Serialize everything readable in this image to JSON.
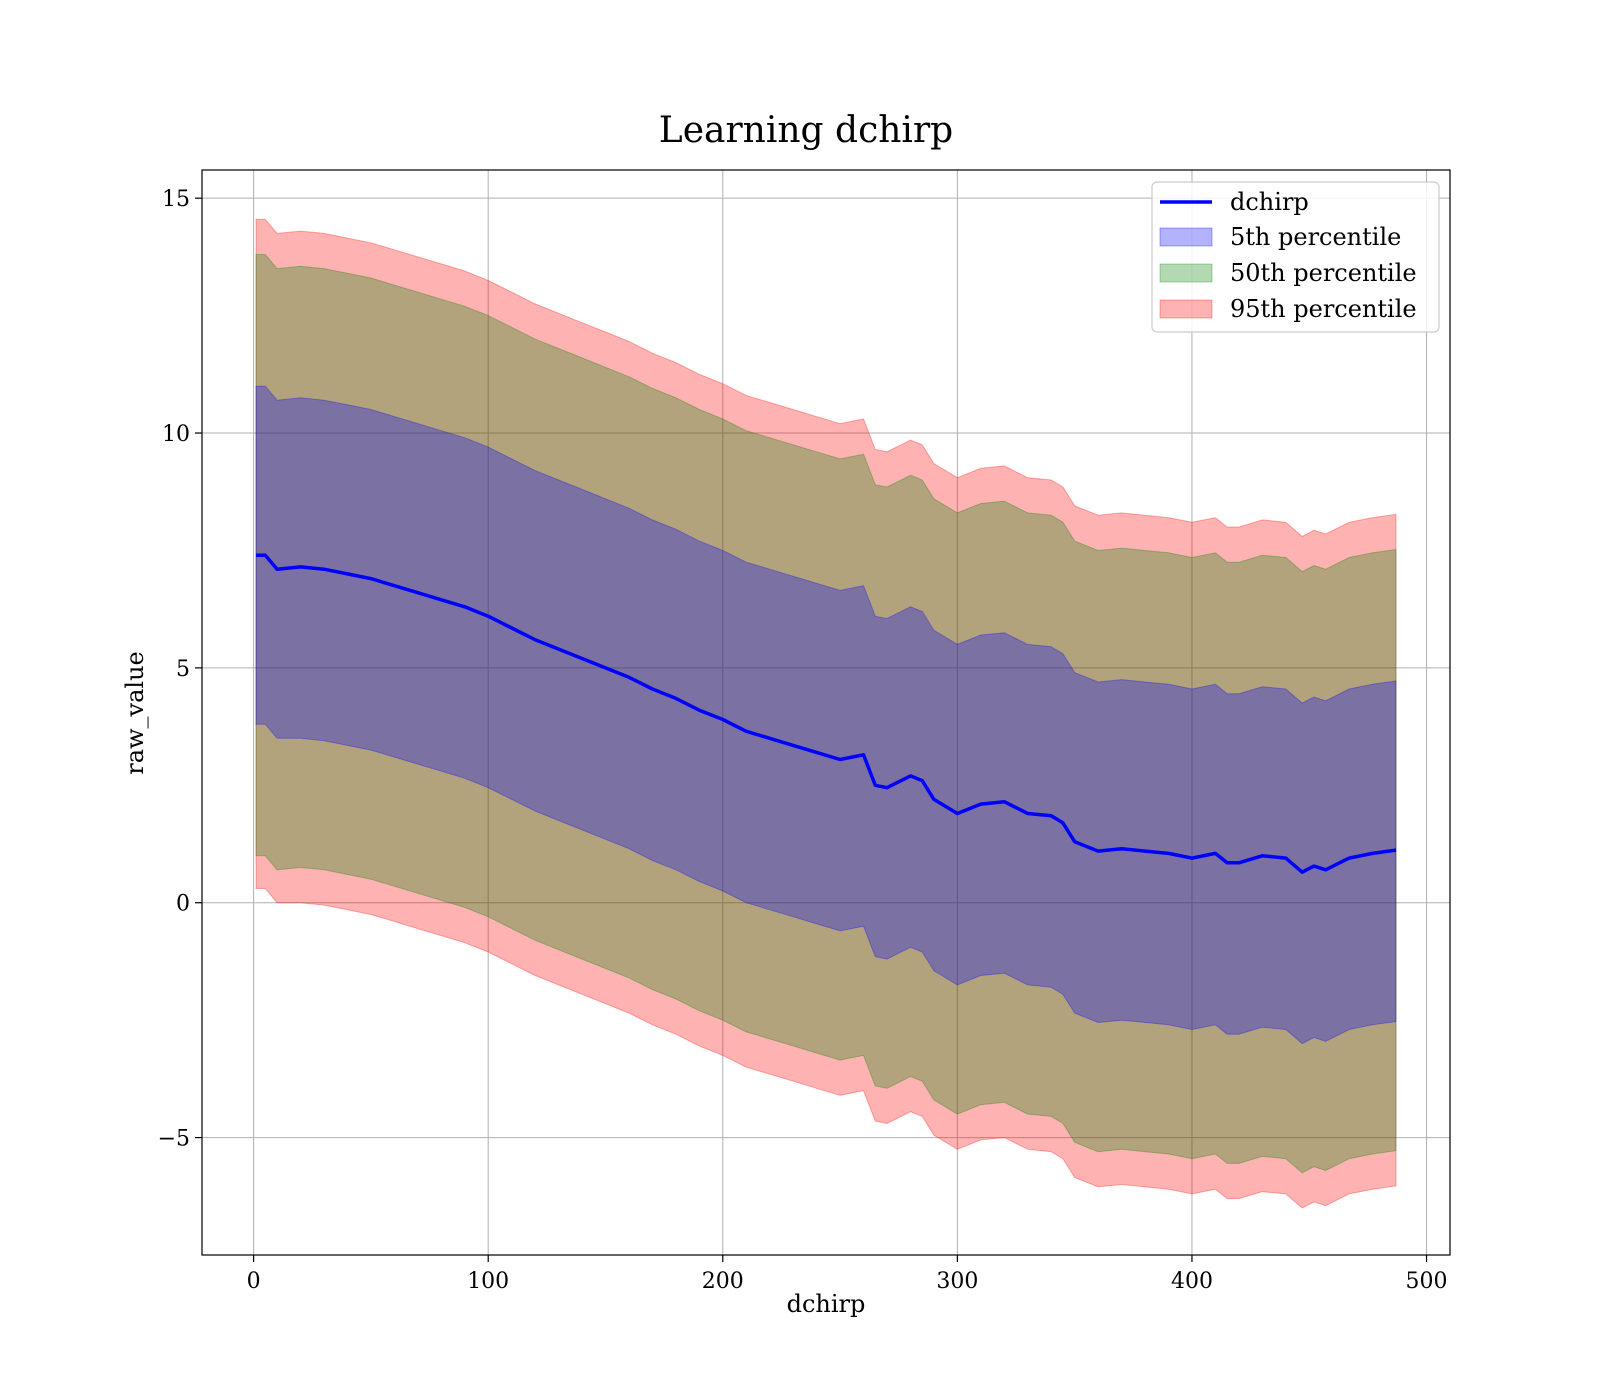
{
  "chart_data": {
    "type": "area",
    "title": "Learning dchirp",
    "xlabel": "dchirp",
    "ylabel": "raw_value",
    "xlim": [
      -22,
      510
    ],
    "ylim": [
      -7.5,
      15.6
    ],
    "xticks": [
      0,
      100,
      200,
      300,
      400,
      500
    ],
    "xtick_labels": [
      "0",
      "100",
      "200",
      "300",
      "400",
      "500"
    ],
    "yticks": [
      -5,
      0,
      5,
      10,
      15
    ],
    "ytick_labels": [
      "−5",
      "0",
      "5",
      "10",
      "15"
    ],
    "grid": true,
    "legend_position": "top-right",
    "series": [
      {
        "name": "dchirp",
        "kind": "line",
        "color": "#0000ff",
        "x": [
          1,
          5,
          10,
          20,
          30,
          40,
          50,
          60,
          70,
          80,
          90,
          100,
          110,
          120,
          130,
          140,
          150,
          160,
          170,
          180,
          190,
          200,
          210,
          220,
          230,
          240,
          250,
          260,
          265,
          270,
          280,
          285,
          290,
          300,
          310,
          320,
          330,
          340,
          345,
          350,
          360,
          370,
          380,
          390,
          400,
          410,
          415,
          420,
          430,
          440,
          447,
          452,
          457,
          467,
          477,
          487
        ],
        "y": [
          7.4,
          7.4,
          7.1,
          7.15,
          7.1,
          7.0,
          6.9,
          6.75,
          6.6,
          6.45,
          6.3,
          6.1,
          5.85,
          5.6,
          5.4,
          5.2,
          5.0,
          4.8,
          4.55,
          4.35,
          4.1,
          3.9,
          3.65,
          3.5,
          3.35,
          3.2,
          3.05,
          3.15,
          2.5,
          2.45,
          2.7,
          2.6,
          2.2,
          1.9,
          2.1,
          2.15,
          1.9,
          1.85,
          1.7,
          1.3,
          1.1,
          1.15,
          1.1,
          1.05,
          0.95,
          1.05,
          0.85,
          0.85,
          1.0,
          0.95,
          0.65,
          0.78,
          0.7,
          0.95,
          1.05,
          1.12
        ]
      },
      {
        "name": "5th percentile",
        "kind": "band",
        "color": "#0000ff",
        "opacity": 0.3,
        "x": [
          1,
          5,
          10,
          20,
          30,
          40,
          50,
          60,
          70,
          80,
          90,
          100,
          110,
          120,
          130,
          140,
          150,
          160,
          170,
          180,
          190,
          200,
          210,
          220,
          230,
          240,
          250,
          260,
          265,
          270,
          280,
          285,
          290,
          300,
          310,
          320,
          330,
          340,
          345,
          350,
          360,
          370,
          380,
          390,
          400,
          410,
          415,
          420,
          430,
          440,
          447,
          452,
          457,
          467,
          477,
          487
        ],
        "lower": [
          3.8,
          3.8,
          3.5,
          3.5,
          3.45,
          3.35,
          3.25,
          3.1,
          2.95,
          2.8,
          2.65,
          2.45,
          2.2,
          1.95,
          1.75,
          1.55,
          1.35,
          1.15,
          0.9,
          0.7,
          0.45,
          0.25,
          0.0,
          -0.15,
          -0.3,
          -0.45,
          -0.6,
          -0.5,
          -1.15,
          -1.2,
          -0.95,
          -1.05,
          -1.45,
          -1.75,
          -1.55,
          -1.5,
          -1.75,
          -1.8,
          -1.95,
          -2.35,
          -2.55,
          -2.5,
          -2.55,
          -2.6,
          -2.7,
          -2.6,
          -2.8,
          -2.8,
          -2.65,
          -2.7,
          -3.0,
          -2.87,
          -2.95,
          -2.7,
          -2.6,
          -2.53
        ],
        "upper": [
          11.0,
          11.0,
          10.7,
          10.75,
          10.7,
          10.6,
          10.5,
          10.35,
          10.2,
          10.05,
          9.9,
          9.7,
          9.45,
          9.2,
          9.0,
          8.8,
          8.6,
          8.4,
          8.15,
          7.95,
          7.7,
          7.5,
          7.25,
          7.1,
          6.95,
          6.8,
          6.65,
          6.75,
          6.1,
          6.05,
          6.3,
          6.2,
          5.8,
          5.5,
          5.7,
          5.75,
          5.5,
          5.45,
          5.3,
          4.9,
          4.7,
          4.75,
          4.7,
          4.65,
          4.55,
          4.65,
          4.45,
          4.45,
          4.6,
          4.55,
          4.25,
          4.38,
          4.3,
          4.55,
          4.65,
          4.72
        ]
      },
      {
        "name": "50th percentile",
        "kind": "band",
        "color": "#008000",
        "opacity": 0.3,
        "x": [
          1,
          5,
          10,
          20,
          30,
          40,
          50,
          60,
          70,
          80,
          90,
          100,
          110,
          120,
          130,
          140,
          150,
          160,
          170,
          180,
          190,
          200,
          210,
          220,
          230,
          240,
          250,
          260,
          265,
          270,
          280,
          285,
          290,
          300,
          310,
          320,
          330,
          340,
          345,
          350,
          360,
          370,
          380,
          390,
          400,
          410,
          415,
          420,
          430,
          440,
          447,
          452,
          457,
          467,
          477,
          487
        ],
        "lower": [
          1.0,
          1.0,
          0.7,
          0.75,
          0.7,
          0.6,
          0.5,
          0.35,
          0.2,
          0.05,
          -0.1,
          -0.3,
          -0.55,
          -0.8,
          -1.0,
          -1.2,
          -1.4,
          -1.6,
          -1.85,
          -2.05,
          -2.3,
          -2.5,
          -2.75,
          -2.9,
          -3.05,
          -3.2,
          -3.35,
          -3.25,
          -3.9,
          -3.95,
          -3.7,
          -3.8,
          -4.2,
          -4.5,
          -4.3,
          -4.25,
          -4.5,
          -4.55,
          -4.7,
          -5.1,
          -5.3,
          -5.25,
          -5.3,
          -5.35,
          -5.45,
          -5.35,
          -5.55,
          -5.55,
          -5.4,
          -5.45,
          -5.75,
          -5.62,
          -5.7,
          -5.45,
          -5.35,
          -5.28
        ],
        "upper": [
          13.8,
          13.8,
          13.5,
          13.55,
          13.5,
          13.4,
          13.3,
          13.15,
          13.0,
          12.85,
          12.7,
          12.5,
          12.25,
          12.0,
          11.8,
          11.6,
          11.4,
          11.2,
          10.95,
          10.75,
          10.5,
          10.3,
          10.05,
          9.9,
          9.75,
          9.6,
          9.45,
          9.55,
          8.9,
          8.85,
          9.1,
          9.0,
          8.6,
          8.3,
          8.5,
          8.55,
          8.3,
          8.25,
          8.1,
          7.7,
          7.5,
          7.55,
          7.5,
          7.45,
          7.35,
          7.45,
          7.25,
          7.25,
          7.4,
          7.35,
          7.05,
          7.18,
          7.1,
          7.35,
          7.45,
          7.52
        ]
      },
      {
        "name": "95th percentile",
        "kind": "band",
        "color": "#ff0000",
        "opacity": 0.3,
        "x": [
          1,
          5,
          10,
          20,
          30,
          40,
          50,
          60,
          70,
          80,
          90,
          100,
          110,
          120,
          130,
          140,
          150,
          160,
          170,
          180,
          190,
          200,
          210,
          220,
          230,
          240,
          250,
          260,
          265,
          270,
          280,
          285,
          290,
          300,
          310,
          320,
          330,
          340,
          345,
          350,
          360,
          370,
          380,
          390,
          400,
          410,
          415,
          420,
          430,
          440,
          447,
          452,
          457,
          467,
          477,
          487
        ],
        "lower": [
          0.3,
          0.3,
          0.0,
          0.0,
          -0.05,
          -0.15,
          -0.25,
          -0.4,
          -0.55,
          -0.7,
          -0.85,
          -1.05,
          -1.3,
          -1.55,
          -1.75,
          -1.95,
          -2.15,
          -2.35,
          -2.6,
          -2.8,
          -3.05,
          -3.25,
          -3.5,
          -3.65,
          -3.8,
          -3.95,
          -4.1,
          -4.0,
          -4.65,
          -4.7,
          -4.45,
          -4.55,
          -4.95,
          -5.25,
          -5.05,
          -5.0,
          -5.25,
          -5.3,
          -5.45,
          -5.85,
          -6.05,
          -6.0,
          -6.05,
          -6.1,
          -6.2,
          -6.1,
          -6.3,
          -6.3,
          -6.15,
          -6.2,
          -6.5,
          -6.37,
          -6.45,
          -6.2,
          -6.1,
          -6.03
        ],
        "upper": [
          14.55,
          14.55,
          14.25,
          14.3,
          14.25,
          14.15,
          14.05,
          13.9,
          13.75,
          13.6,
          13.45,
          13.25,
          13.0,
          12.75,
          12.55,
          12.35,
          12.15,
          11.95,
          11.7,
          11.5,
          11.25,
          11.05,
          10.8,
          10.65,
          10.5,
          10.35,
          10.2,
          10.3,
          9.65,
          9.6,
          9.85,
          9.75,
          9.35,
          9.05,
          9.25,
          9.3,
          9.05,
          9.0,
          8.85,
          8.45,
          8.25,
          8.3,
          8.25,
          8.2,
          8.1,
          8.2,
          8.0,
          8.0,
          8.15,
          8.1,
          7.8,
          7.93,
          7.85,
          8.1,
          8.2,
          8.27
        ]
      }
    ]
  }
}
